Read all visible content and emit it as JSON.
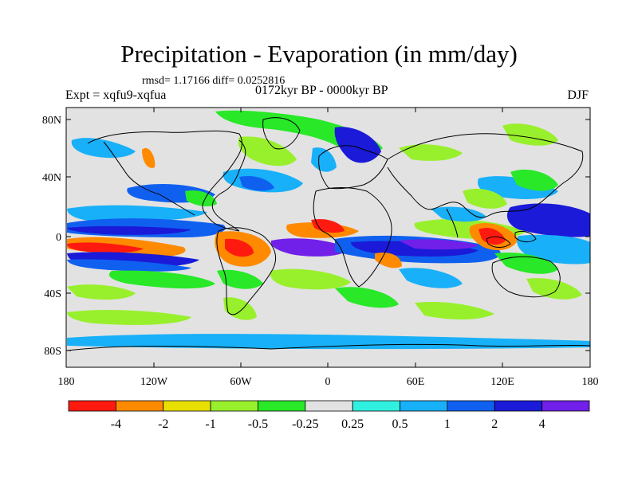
{
  "title": "Precipitation - Evaporation (in mm/day)",
  "stats": "rmsd= 1.17166 diff= 0.0252816",
  "experiment": "Expt = xqfu9-xqfua",
  "period": "0172kyr BP - 0000kyr BP",
  "season": "DJF",
  "map": {
    "lon_ticks": [
      "180",
      "120W",
      "60W",
      "0",
      "60E",
      "120E",
      "180"
    ],
    "lat_ticks": [
      "80N",
      "40N",
      "0",
      "40S",
      "80S"
    ],
    "background_color": "#e2e2e2"
  },
  "colorbar": {
    "colors": [
      "#ff1a10",
      "#ff8a00",
      "#e8e000",
      "#98f02c",
      "#28e828",
      "#e2e2e2",
      "#30f0e0",
      "#18b0f8",
      "#1060f0",
      "#1a1ad8",
      "#7020e8"
    ],
    "labels": [
      "-4",
      "-2",
      "-1",
      "-0.5",
      "-0.25",
      "0.25",
      "0.5",
      "1",
      "2",
      "4"
    ]
  }
}
